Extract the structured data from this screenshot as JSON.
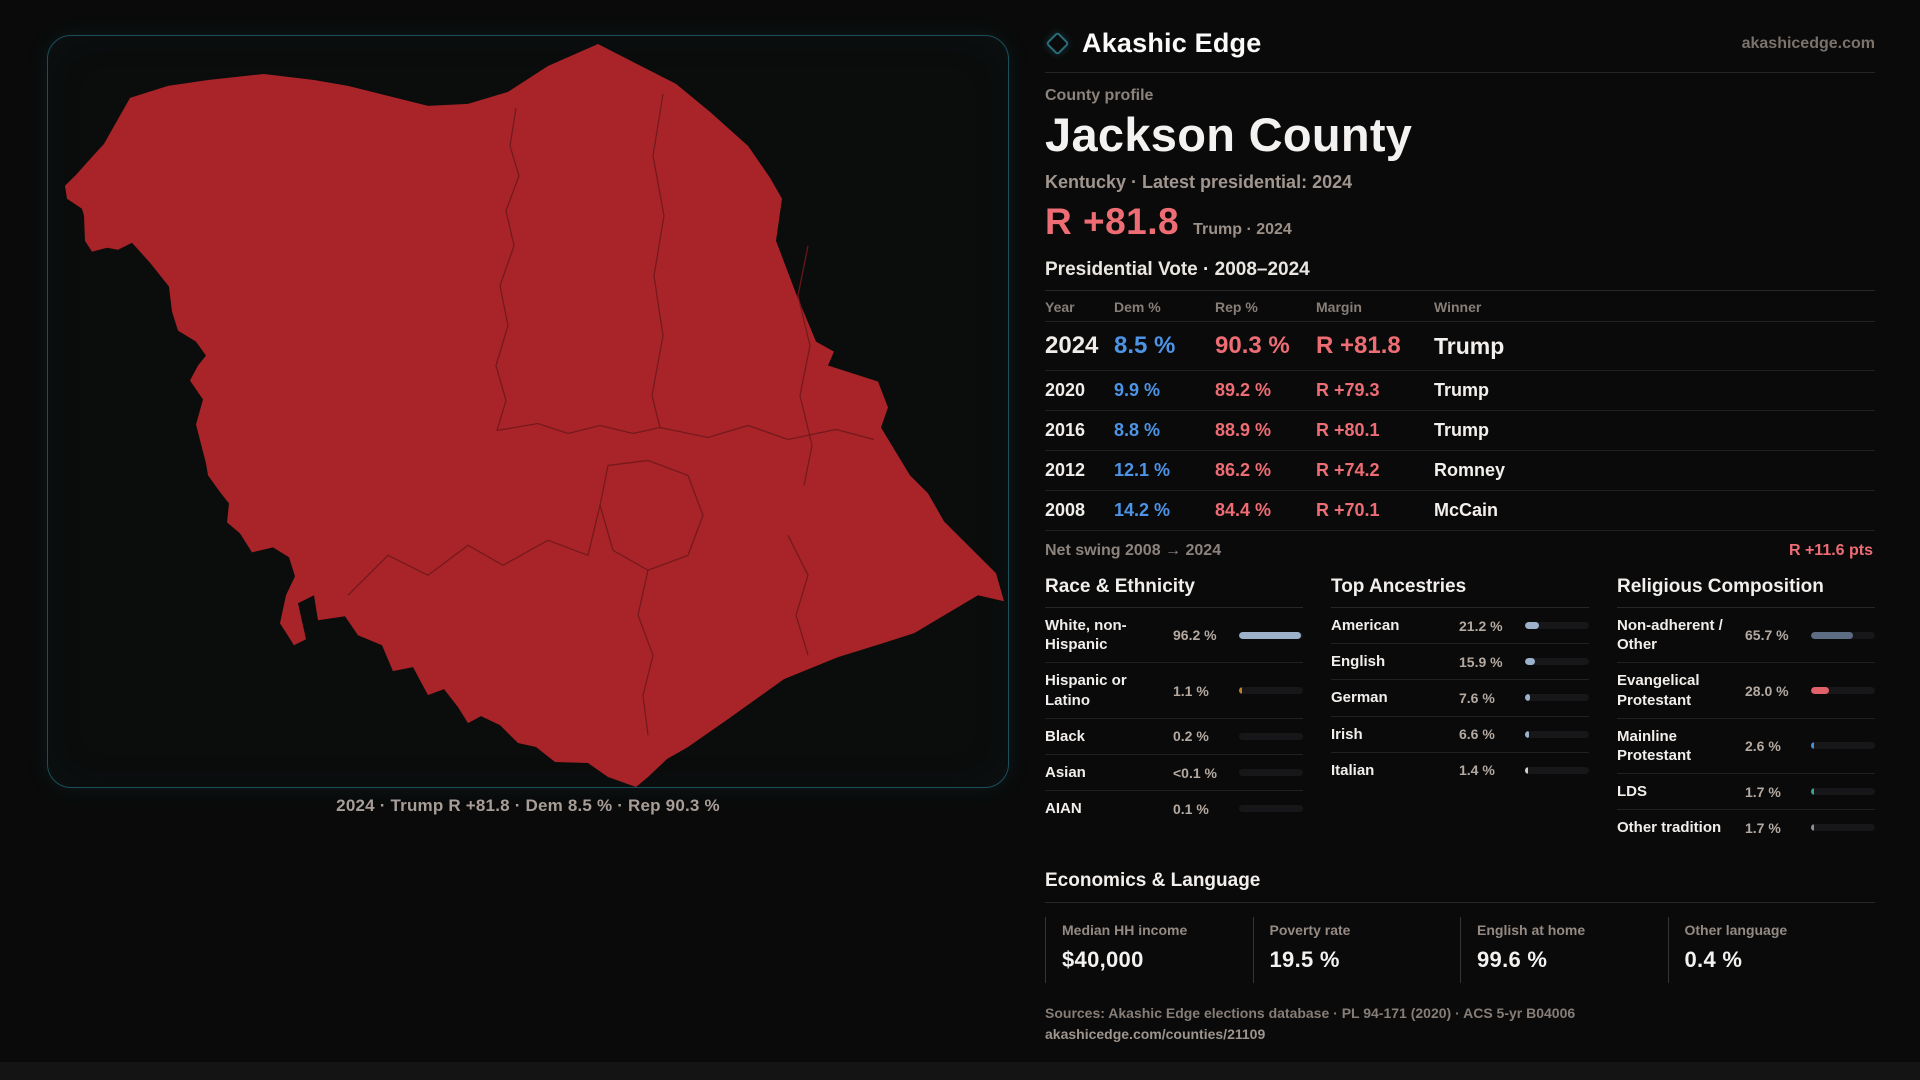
{
  "theme": {
    "accent_border": "#1a505a",
    "map_fill": "#a92428",
    "map_line": "#6f181c",
    "rep": "#ee6d74",
    "dem": "#4d93e6"
  },
  "brand": {
    "name": "Akashic Edge",
    "domain": "akashicedge.com"
  },
  "profile": {
    "eyebrow": "County profile",
    "title": "Jackson County",
    "subtitle": "Kentucky · Latest presidential: 2024",
    "headline_margin": "R +81.8",
    "headline_context": "Trump · 2024"
  },
  "map": {
    "caption": "2024 · Trump R +81.8 · Dem 8.5 % · Rep 90.3 %"
  },
  "vote": {
    "title": "Presidential Vote · 2008–2024",
    "columns": [
      "Year",
      "Dem %",
      "Rep %",
      "Margin",
      "Winner"
    ],
    "rows": [
      [
        "2024",
        "8.5 %",
        "90.3 %",
        "R +81.8",
        "Trump"
      ],
      [
        "2020",
        "9.9 %",
        "89.2 %",
        "R +79.3",
        "Trump"
      ],
      [
        "2016",
        "8.8 %",
        "88.9 %",
        "R +80.1",
        "Trump"
      ],
      [
        "2012",
        "12.1 %",
        "86.2 %",
        "R +74.2",
        "Romney"
      ],
      [
        "2008",
        "14.2 %",
        "84.4 %",
        "R +70.1",
        "McCain"
      ]
    ]
  },
  "net_swing": {
    "label": "Net swing 2008 → 2024",
    "value": "R +11.6 pts"
  },
  "demographics": {
    "race": {
      "title": "Race & Ethnicity",
      "rows": [
        {
          "label": "White, non-Hispanic",
          "value": "96.2 %",
          "bar_pct": 96.2,
          "bar_color": "#9db1ca"
        },
        {
          "label": "Hispanic or Latino",
          "value": "1.1 %",
          "bar_pct": 1.1,
          "bar_color": "#c07f2b"
        },
        {
          "label": "Black",
          "value": "0.2 %",
          "bar_pct": 0,
          "bar_color": null
        },
        {
          "label": "Asian",
          "value": "<0.1 %",
          "bar_pct": 0,
          "bar_color": null
        },
        {
          "label": "AIAN",
          "value": "0.1 %",
          "bar_pct": 0,
          "bar_color": null
        }
      ]
    },
    "ancestries": {
      "title": "Top Ancestries",
      "rows": [
        {
          "label": "American",
          "value": "21.2 %",
          "bar_pct": 21.2,
          "bar_color": "#9db1ca"
        },
        {
          "label": "English",
          "value": "15.9 %",
          "bar_pct": 15.9,
          "bar_color": "#9db1ca"
        },
        {
          "label": "German",
          "value": "7.6 %",
          "bar_pct": 7.6,
          "bar_color": "#9db1ca"
        },
        {
          "label": "Irish",
          "value": "6.6 %",
          "bar_pct": 6.6,
          "bar_color": "#9db1ca"
        },
        {
          "label": "Italian",
          "value": "1.4 %",
          "bar_pct": 1.4,
          "bar_color": "#cfcfcf"
        }
      ]
    },
    "religion": {
      "title": "Religious Composition",
      "rows": [
        {
          "label": "Non-adherent / Other",
          "value": "65.7 %",
          "bar_pct": 65.7,
          "bar_color": "#5c6c82"
        },
        {
          "label": "Evangelical Protestant",
          "value": "28.0 %",
          "bar_pct": 28.0,
          "bar_color": "#e0616a"
        },
        {
          "label": "Mainline Protestant",
          "value": "2.6 %",
          "bar_pct": 2.6,
          "bar_color": "#4a8fd4"
        },
        {
          "label": "LDS",
          "value": "1.7 %",
          "bar_pct": 1.7,
          "bar_color": "#38a395"
        },
        {
          "label": "Other tradition",
          "value": "1.7 %",
          "bar_pct": 1.7,
          "bar_color": "#8f8f8f"
        }
      ]
    }
  },
  "economics": {
    "title": "Economics & Language",
    "stats": [
      {
        "label": "Median HH income",
        "value": "$40,000"
      },
      {
        "label": "Poverty rate",
        "value": "19.5 %"
      },
      {
        "label": "English at home",
        "value": "99.6 %"
      },
      {
        "label": "Other language",
        "value": "0.4 %"
      }
    ]
  },
  "footer": {
    "sources": "Sources: Akashic Edge elections database · PL 94-171 (2020) · ACS 5-yr B04006",
    "permalink": "akashicedge.com/counties/21109"
  }
}
